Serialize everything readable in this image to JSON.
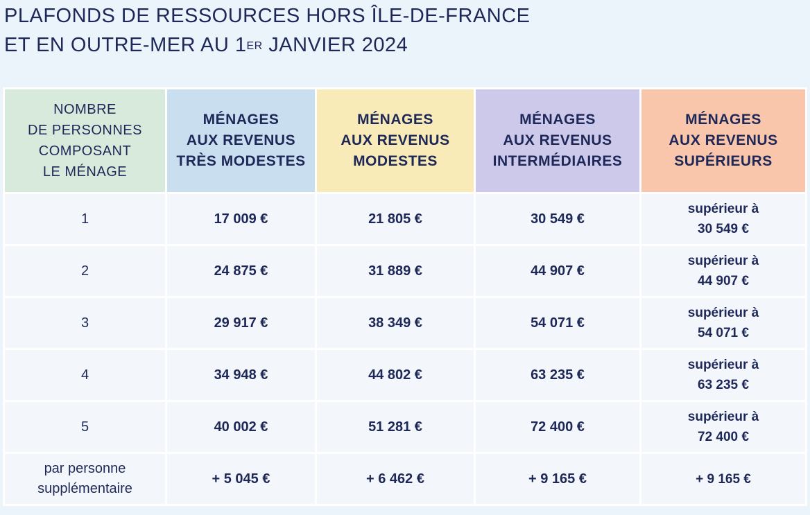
{
  "title": {
    "line1": "PLAFONDS DE RESSOURCES HORS ÎLE-DE-FRANCE",
    "line2_pre": "ET EN OUTRE-MER AU 1",
    "line2_sup": "ER",
    "line2_post": " JANVIER 2024"
  },
  "colors": {
    "header_persons": "#d8eadb",
    "header_tres_modestes": "#c9dff0",
    "header_modestes": "#f8ebb8",
    "header_intermediaires": "#cdc9ea",
    "header_superieurs": "#f9c6ac",
    "text": "#1e2858"
  },
  "headers": [
    [
      "NOMBRE",
      "DE PERSONNES",
      "COMPOSANT",
      "LE MÉNAGE"
    ],
    [
      "MÉNAGES",
      "AUX REVENUS",
      "TRÈS MODESTES"
    ],
    [
      "MÉNAGES",
      "AUX REVENUS",
      "MODESTES"
    ],
    [
      "MÉNAGES",
      "AUX REVENUS",
      "INTERMÉDIAIRES"
    ],
    [
      "MÉNAGES",
      "AUX REVENUS",
      "SUPÉRIEURS"
    ]
  ],
  "rows": [
    {
      "persons": [
        "1"
      ],
      "tres_modestes": "17 009 €",
      "modestes": "21 805 €",
      "intermediaires": "30 549 €",
      "superieurs": [
        "supérieur à",
        "30 549 €"
      ]
    },
    {
      "persons": [
        "2"
      ],
      "tres_modestes": "24 875 €",
      "modestes": "31 889 €",
      "intermediaires": "44 907 €",
      "superieurs": [
        "supérieur à",
        "44 907 €"
      ]
    },
    {
      "persons": [
        "3"
      ],
      "tres_modestes": "29 917 €",
      "modestes": "38 349 €",
      "intermediaires": "54 071 €",
      "superieurs": [
        "supérieur à",
        "54 071 €"
      ]
    },
    {
      "persons": [
        "4"
      ],
      "tres_modestes": "34 948 €",
      "modestes": "44 802 €",
      "intermediaires": "63 235 €",
      "superieurs": [
        "supérieur à",
        "63 235 €"
      ]
    },
    {
      "persons": [
        "5"
      ],
      "tres_modestes": "40 002 €",
      "modestes": "51 281 €",
      "intermediaires": "72 400 €",
      "superieurs": [
        "supérieur à",
        "72 400 €"
      ]
    },
    {
      "persons": [
        "par personne",
        "supplémentaire"
      ],
      "tres_modestes": "+ 5 045 €",
      "modestes": "+ 6 462 €",
      "intermediaires": "+ 9 165 €",
      "superieurs": [
        "+ 9 165 €"
      ]
    }
  ]
}
